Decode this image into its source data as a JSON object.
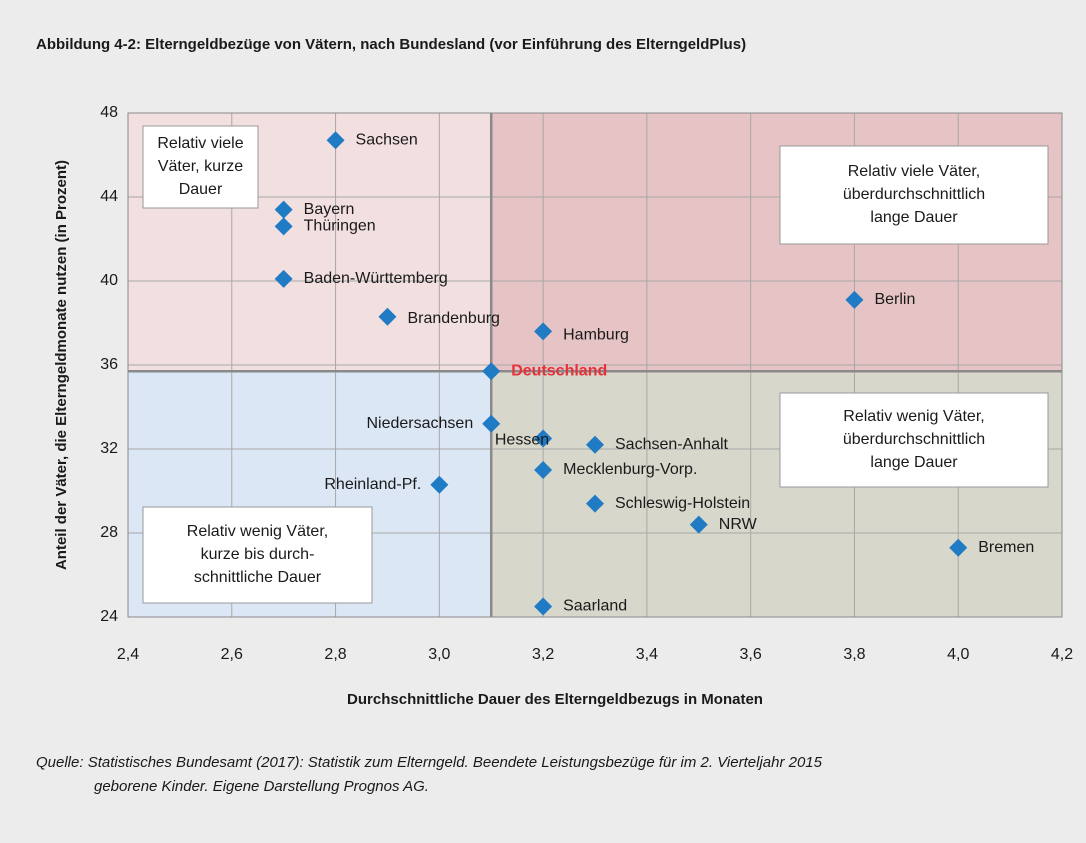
{
  "chart_data": {
    "type": "scatter",
    "title": "Abbildung 4-2: Elterngeldbezüge von Vätern, nach Bundesland (vor Einführung des ElterngeldPlus)",
    "xlabel": "Durchschnittliche Dauer des Elterngeldbezugs in Monaten",
    "ylabel": "Anteil der Väter, die Elterngeldmonate nutzen (in Prozent)",
    "labels": [
      "Sachsen",
      "Bayern",
      "Thüringen",
      "Baden-Württemberg",
      "Brandenburg",
      "Hamburg",
      "Berlin",
      "Deutschland",
      "Niedersachsen",
      "Hessen",
      "Sachsen-Anhalt",
      "Mecklenburg-Vorp.",
      "Rheinland-Pf.",
      "Schleswig-Holstein",
      "NRW",
      "Bremen",
      "Saarland"
    ],
    "x": [
      2.8,
      2.7,
      2.7,
      2.7,
      2.9,
      3.2,
      3.8,
      3.1,
      3.1,
      3.2,
      3.3,
      3.2,
      3.0,
      3.3,
      3.5,
      4.0,
      3.2
    ],
    "values": [
      46.7,
      43.4,
      42.6,
      40.1,
      38.3,
      37.6,
      39.1,
      35.7,
      33.2,
      32.5,
      32.2,
      31.0,
      30.3,
      29.4,
      28.4,
      27.3,
      24.5
    ],
    "color": "#1f7bc4",
    "highlight_color": "#e3323a",
    "xlim": [
      2.4,
      4.2
    ],
    "xticks": [
      {
        "value": 2.4,
        "label": "2,4"
      },
      {
        "value": 2.6,
        "label": "2,6"
      },
      {
        "value": 2.8,
        "label": "2,8"
      },
      {
        "value": 3.0,
        "label": "3,0"
      },
      {
        "value": 3.2,
        "label": "3,2"
      },
      {
        "value": 3.4,
        "label": "3,4"
      },
      {
        "value": 3.6,
        "label": "3,6"
      },
      {
        "value": 3.8,
        "label": "3,8"
      },
      {
        "value": 4.0,
        "label": "4,0"
      },
      {
        "value": 4.2,
        "label": "4,2"
      }
    ],
    "ylim": [
      24,
      48
    ],
    "yticks": [
      24,
      28,
      32,
      36,
      40,
      44,
      48
    ],
    "grid": true,
    "annotations": [
      [
        "Relativ viele",
        "Väter, kurze",
        "Dauer"
      ],
      [
        "Relativ viele Väter,",
        "überdurchschnittlich",
        "lange Dauer"
      ],
      [
        "Relativ wenig Väter,",
        "überdurchschnittlich",
        "lange Dauer"
      ],
      [
        "Relativ wenig Väter,",
        "kurze bis durch-",
        "schnittliche Dauer"
      ]
    ],
    "source": [
      "Quelle: Statistisches Bundesamt (2017): Statistik zum Elterngeld. Beendete Leistungsbezüge für im 2. Vierteljahr 2015",
      "geborene Kinder. Eigene Darstellung Prognos AG."
    ]
  }
}
